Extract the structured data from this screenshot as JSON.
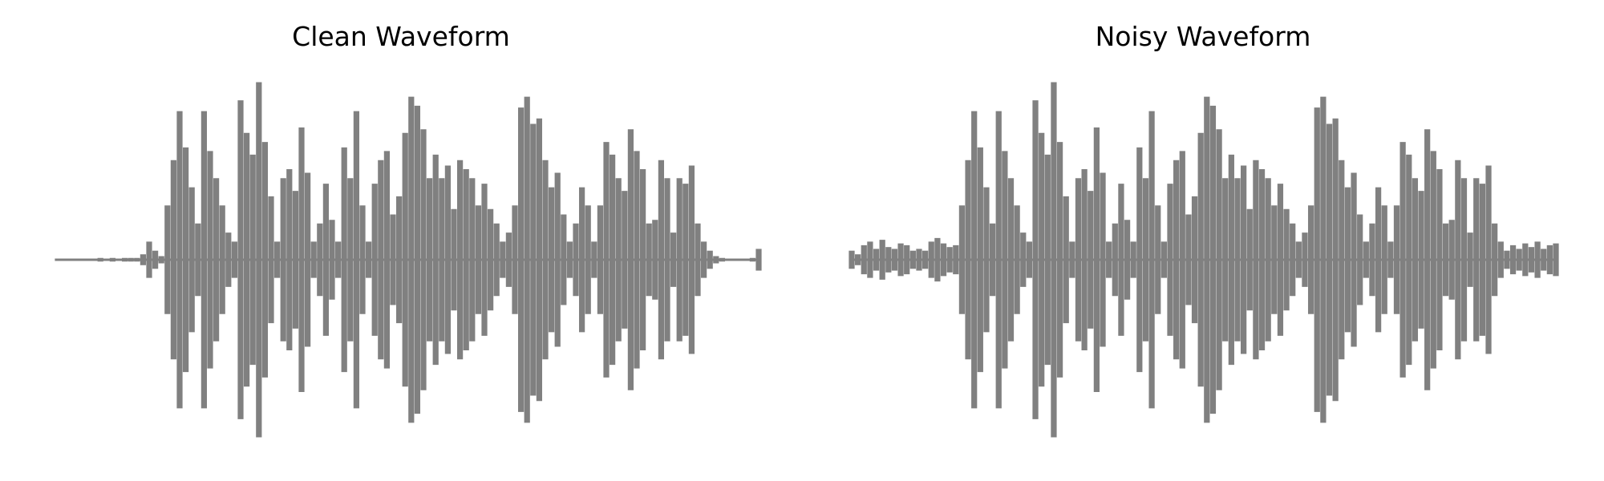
{
  "chart_data": [
    {
      "type": "line",
      "title": "Clean Waveform",
      "xlabel": "",
      "ylabel": "",
      "axes": "off",
      "grid": false,
      "ylim": [
        -1.0,
        1.0
      ],
      "series": [
        {
          "color": "#808080",
          "envelope": [
            0.0,
            0.0,
            0.0,
            0.0,
            0.0,
            0.0,
            0.0,
            0.01,
            0.0,
            0.01,
            0.0,
            0.01,
            0.01,
            0.01,
            0.03,
            0.1,
            0.05,
            0.02,
            0.3,
            0.55,
            0.82,
            0.62,
            0.4,
            0.2,
            0.82,
            0.6,
            0.45,
            0.3,
            0.15,
            0.1,
            0.88,
            0.7,
            0.58,
            0.98,
            0.65,
            0.35,
            0.1,
            0.45,
            0.5,
            0.38,
            0.73,
            0.48,
            0.1,
            0.2,
            0.42,
            0.22,
            0.1,
            0.62,
            0.45,
            0.82,
            0.3,
            0.1,
            0.42,
            0.55,
            0.6,
            0.25,
            0.35,
            0.7,
            0.9,
            0.85,
            0.72,
            0.45,
            0.58,
            0.45,
            0.52,
            0.28,
            0.55,
            0.5,
            0.45,
            0.3,
            0.42,
            0.28,
            0.2,
            0.1,
            0.15,
            0.3,
            0.84,
            0.9,
            0.75,
            0.78,
            0.55,
            0.4,
            0.48,
            0.25,
            0.1,
            0.2,
            0.4,
            0.3,
            0.1,
            0.3,
            0.65,
            0.58,
            0.45,
            0.38,
            0.72,
            0.6,
            0.5,
            0.2,
            0.22,
            0.55,
            0.45,
            0.15,
            0.45,
            0.42,
            0.52,
            0.2,
            0.1,
            0.05,
            0.02,
            0.01,
            0.0,
            0.0,
            0.0,
            0.0,
            0.01,
            0.06
          ]
        }
      ]
    },
    {
      "type": "line",
      "title": "Noisy Waveform",
      "xlabel": "",
      "ylabel": "",
      "axes": "off",
      "grid": false,
      "ylim": [
        -1.0,
        1.0
      ],
      "series": [
        {
          "color": "#808080",
          "envelope": [
            0.05,
            0.03,
            0.08,
            0.1,
            0.06,
            0.11,
            0.07,
            0.06,
            0.09,
            0.08,
            0.05,
            0.06,
            0.05,
            0.1,
            0.12,
            0.09,
            0.07,
            0.08,
            0.3,
            0.55,
            0.82,
            0.62,
            0.4,
            0.2,
            0.82,
            0.6,
            0.45,
            0.3,
            0.15,
            0.1,
            0.88,
            0.7,
            0.58,
            0.98,
            0.65,
            0.35,
            0.1,
            0.45,
            0.5,
            0.38,
            0.73,
            0.48,
            0.1,
            0.2,
            0.42,
            0.22,
            0.1,
            0.62,
            0.45,
            0.82,
            0.3,
            0.1,
            0.42,
            0.55,
            0.6,
            0.25,
            0.35,
            0.7,
            0.9,
            0.85,
            0.72,
            0.45,
            0.58,
            0.45,
            0.52,
            0.28,
            0.55,
            0.5,
            0.45,
            0.3,
            0.42,
            0.28,
            0.2,
            0.1,
            0.15,
            0.3,
            0.84,
            0.9,
            0.75,
            0.78,
            0.55,
            0.4,
            0.48,
            0.25,
            0.1,
            0.2,
            0.4,
            0.3,
            0.1,
            0.3,
            0.65,
            0.58,
            0.45,
            0.38,
            0.72,
            0.6,
            0.5,
            0.2,
            0.22,
            0.55,
            0.45,
            0.15,
            0.45,
            0.42,
            0.52,
            0.2,
            0.1,
            0.05,
            0.08,
            0.06,
            0.09,
            0.07,
            0.1,
            0.06,
            0.08,
            0.09
          ]
        }
      ]
    }
  ]
}
